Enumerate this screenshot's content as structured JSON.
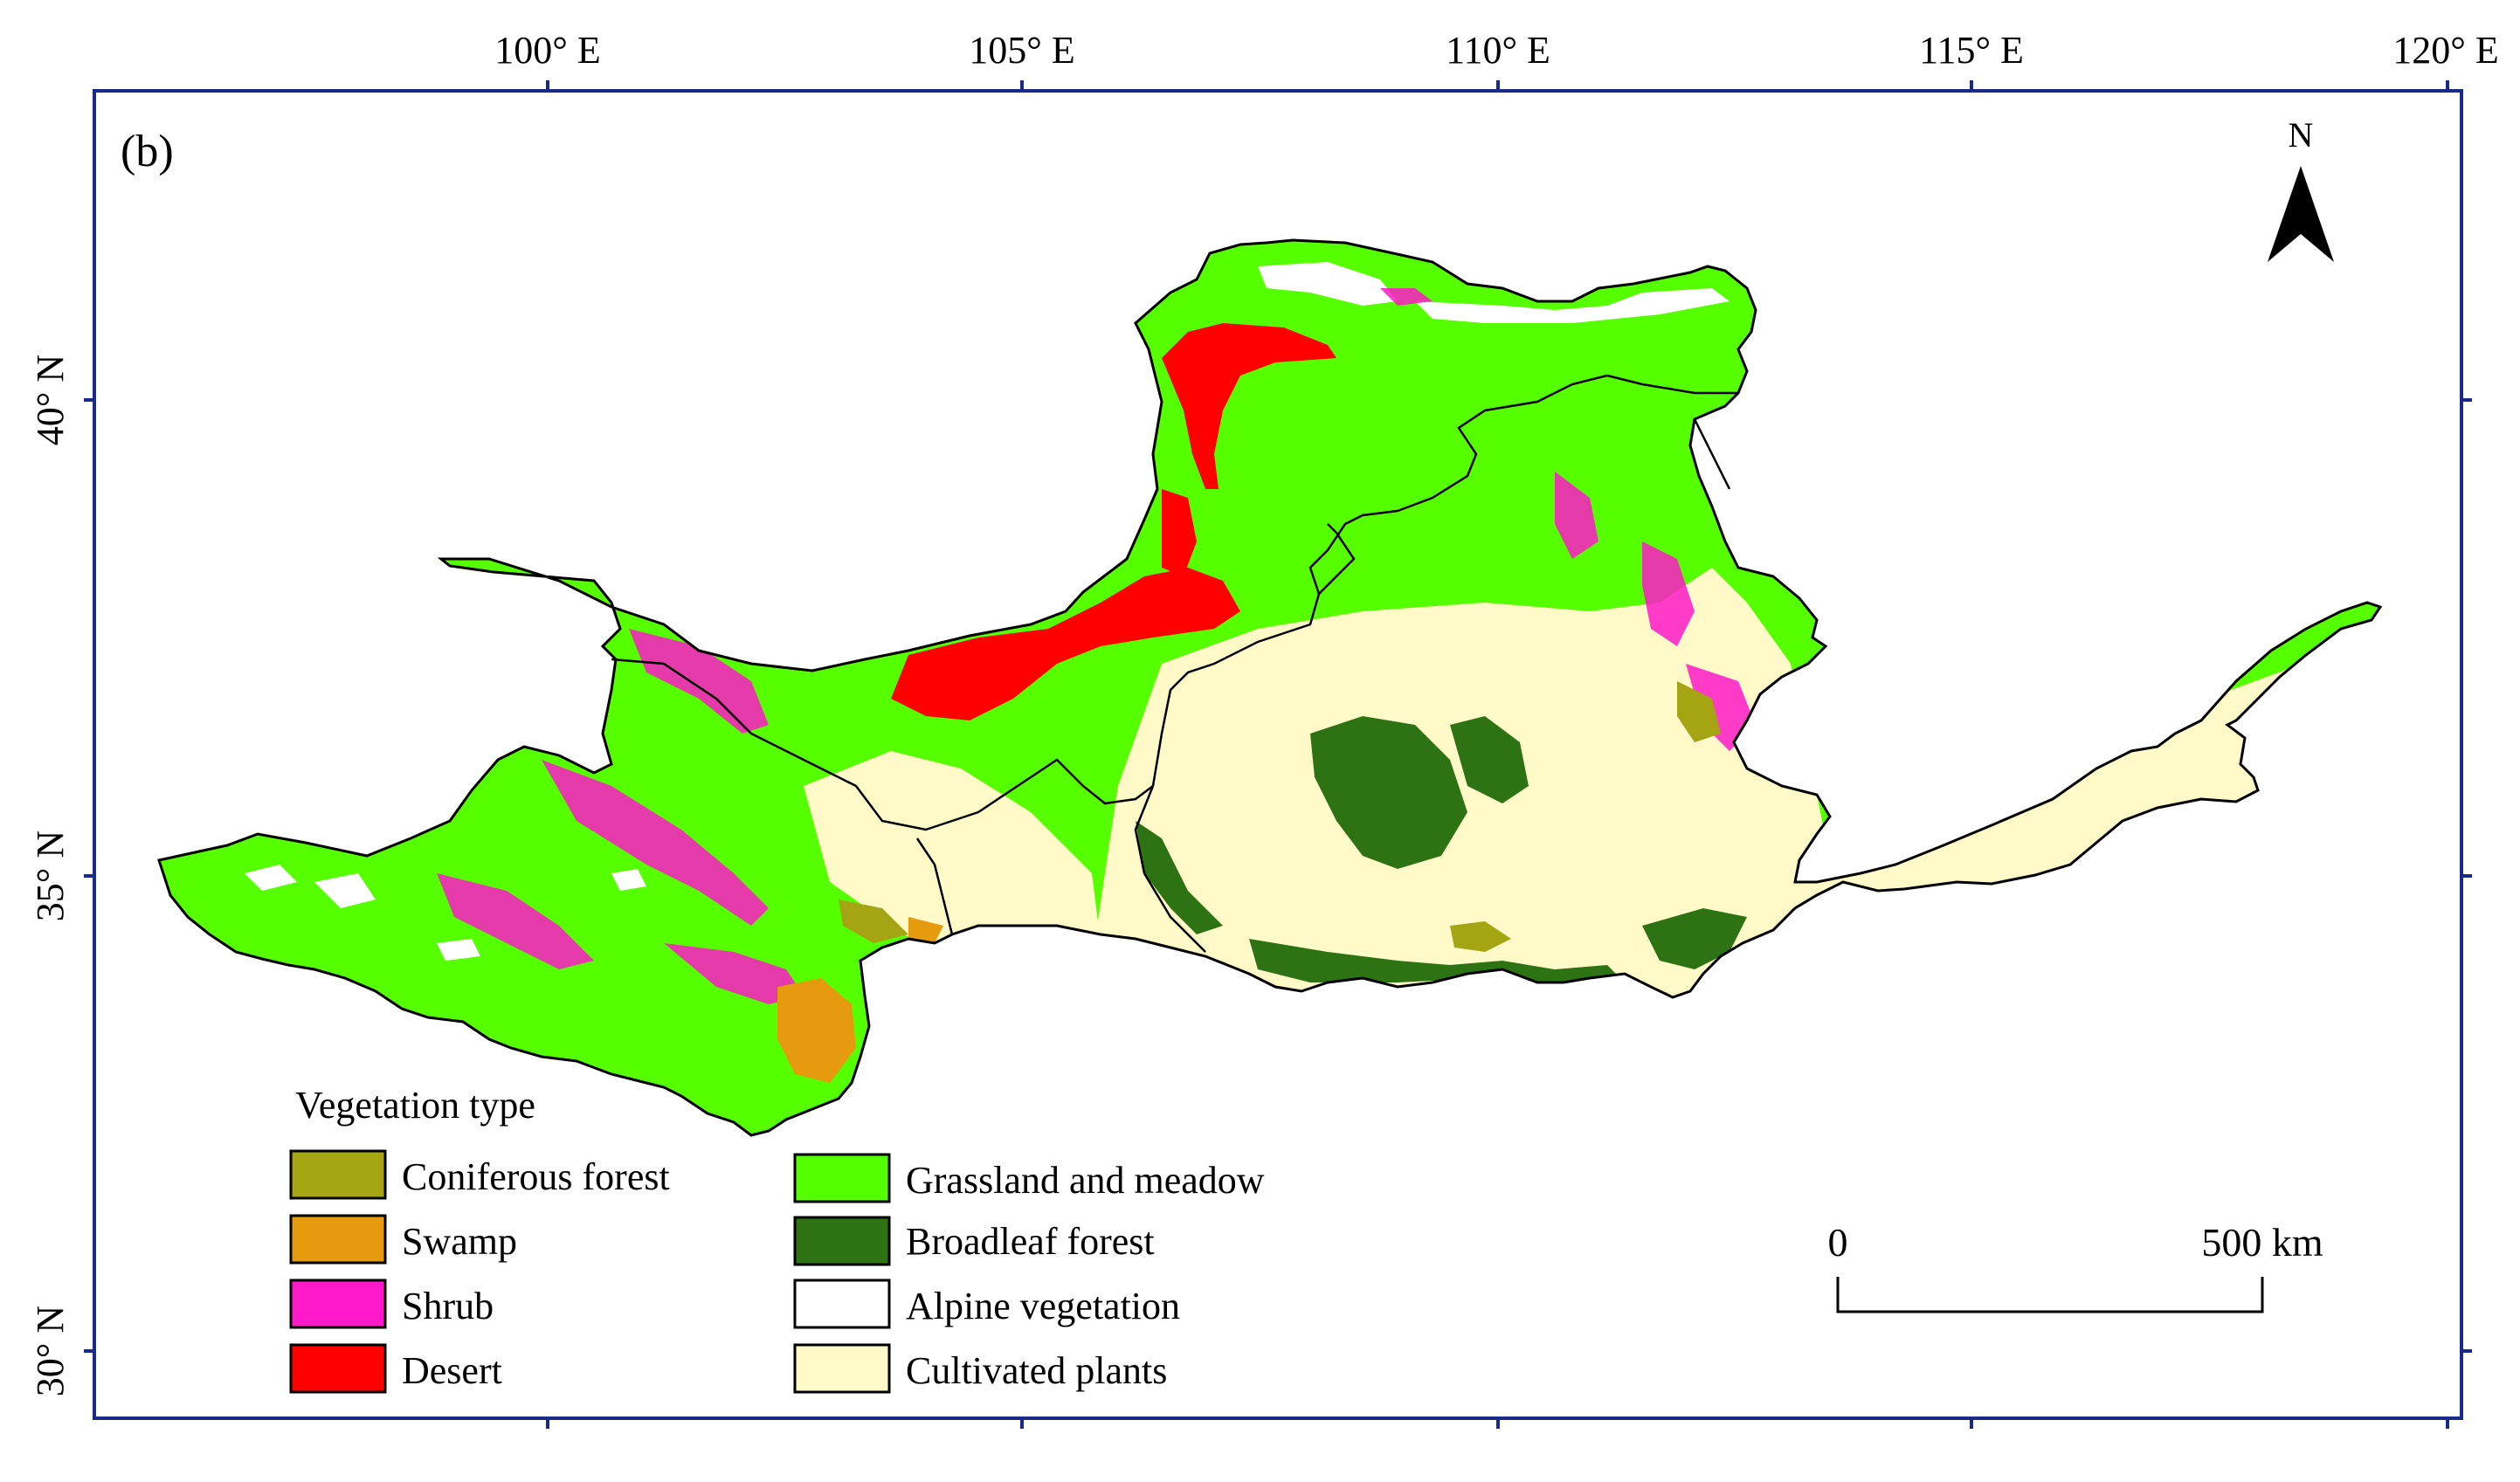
{
  "panel_label": "(b)",
  "axes": {
    "x_ticks": [
      "100° E",
      "105° E",
      "110° E",
      "115° E",
      "120° E"
    ],
    "y_ticks": [
      "40° N",
      "35° N",
      "30° N"
    ]
  },
  "north_arrow": {
    "label": "N",
    "icon": "north-arrow-icon"
  },
  "scale_bar": {
    "start_label": "0",
    "end_label": "500 km"
  },
  "legend": {
    "title": "Vegetation type",
    "items": [
      {
        "label": "Coniferous forest",
        "color": "#a5a514"
      },
      {
        "label": "Swamp",
        "color": "#e69a0e"
      },
      {
        "label": "Shrub",
        "color": "#ff19c8"
      },
      {
        "label": "Desert",
        "color": "#ff0000"
      },
      {
        "label": "Grassland and meadow",
        "color": "#55ff00"
      },
      {
        "label": "Broadleaf forest",
        "color": "#2d7314"
      },
      {
        "label": "Alpine vegetation",
        "color": "#ffffff"
      },
      {
        "label": "Cultivated plants",
        "color": "#fffac8"
      }
    ]
  }
}
